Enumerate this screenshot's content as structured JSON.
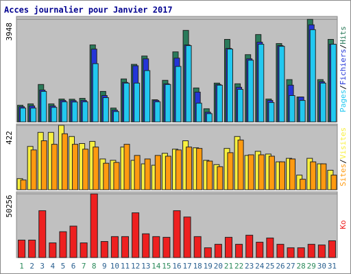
{
  "chart_data": [
    {
      "type": "bar",
      "title": "Acces journalier pour Janvier 2017",
      "legend_separator": "/",
      "ylim": [
        0,
        4060
      ],
      "yticks": [
        3948
      ],
      "series": [
        {
          "name": "Hits",
          "color": "#2a7a5a",
          "values": [
            641,
            694,
            1442,
            694,
            881,
            874,
            908,
            2964,
            1175,
            534,
            1655,
            2216,
            2537,
            854,
            1602,
            2697,
            3524,
            1308,
            507,
            1495,
            3177,
            1469,
            2590,
            3364,
            881,
            3017,
            1629,
            961,
            3948,
            1629,
            3177
          ]
        },
        {
          "name": "Fichiers",
          "color": "#2436d8",
          "values": [
            587,
            614,
            1228,
            614,
            828,
            821,
            828,
            2804,
            1015,
            454,
            1522,
            2163,
            2430,
            828,
            1469,
            2456,
            2964,
            1148,
            374,
            1442,
            2830,
            1335,
            2430,
            3071,
            828,
            2937,
            1415,
            961,
            3738,
            1549,
            2990
          ]
        },
        {
          "name": "Pages",
          "color": "#22c8f0",
          "values": [
            534,
            534,
            1175,
            561,
            774,
            768,
            774,
            2243,
            935,
            401,
            1495,
            1495,
            1976,
            774,
            1442,
            2136,
            2937,
            721,
            320,
            1415,
            2804,
            1255,
            2376,
            2990,
            748,
            2910,
            1015,
            828,
            3551,
            1495,
            2990
          ]
        }
      ]
    },
    {
      "type": "bar",
      "legend_separator": "/",
      "ylim": [
        0,
        431
      ],
      "yticks": [
        422
      ],
      "series": [
        {
          "name": "Visites",
          "color": "#f8f040",
          "values": [
            73,
            284,
            376,
            376,
            422,
            349,
            303,
            317,
            202,
            193,
            280,
            193,
            170,
            161,
            239,
            266,
            321,
            275,
            193,
            165,
            271,
            349,
            225,
            252,
            234,
            183,
            206,
            96,
            206,
            170,
            128
          ]
        },
        {
          "name": "Sites",
          "color": "#ff9a10",
          "values": [
            64,
            261,
            321,
            298,
            367,
            298,
            266,
            280,
            174,
            179,
            298,
            225,
            202,
            225,
            220,
            261,
            280,
            271,
            188,
            151,
            243,
            326,
            229,
            229,
            220,
            183,
            202,
            69,
            183,
            170,
            96
          ]
        }
      ]
    },
    {
      "type": "bar",
      "ylim": [
        0,
        51900
      ],
      "yticks": [
        50256
      ],
      "categories": [
        "1",
        "2",
        "3",
        "4",
        "5",
        "6",
        "7",
        "8",
        "9",
        "10",
        "11",
        "12",
        "13",
        "14",
        "15",
        "16",
        "17",
        "18",
        "19",
        "20",
        "21",
        "22",
        "23",
        "24",
        "25",
        "26",
        "27",
        "28",
        "29",
        "30",
        "31"
      ],
      "x_label_colors": [
        "#2a8a5a",
        "#2a6090",
        "#2a6090",
        "#2a6090",
        "#2a6090",
        "#2a6090",
        "#2a8a5a",
        "#2a8a5a",
        "#2a6090",
        "#2a6090",
        "#2a6090",
        "#2a6090",
        "#2a6090",
        "#2a8a5a",
        "#2a8a5a",
        "#2a6090",
        "#2a6090",
        "#2a6090",
        "#2a6090",
        "#2a6090",
        "#2a8a5a",
        "#2a8a5a",
        "#2a6090",
        "#2a6090",
        "#2a6090",
        "#2a6090",
        "#2a6090",
        "#2a8a5a",
        "#2a8a5a",
        "#2a6090",
        "#2a6090"
      ],
      "series": [
        {
          "name": "Ko",
          "color": "#ee2020",
          "values": [
            13800,
            13800,
            36984,
            11592,
            20424,
            24840,
            11592,
            50256,
            12696,
            16560,
            16560,
            35328,
            18768,
            16560,
            16008,
            36984,
            32016,
            16560,
            7728,
            10488,
            16008,
            10488,
            17664,
            12144,
            15456,
            10488,
            7728,
            7728,
            10488,
            9936,
            13248
          ]
        }
      ]
    }
  ]
}
